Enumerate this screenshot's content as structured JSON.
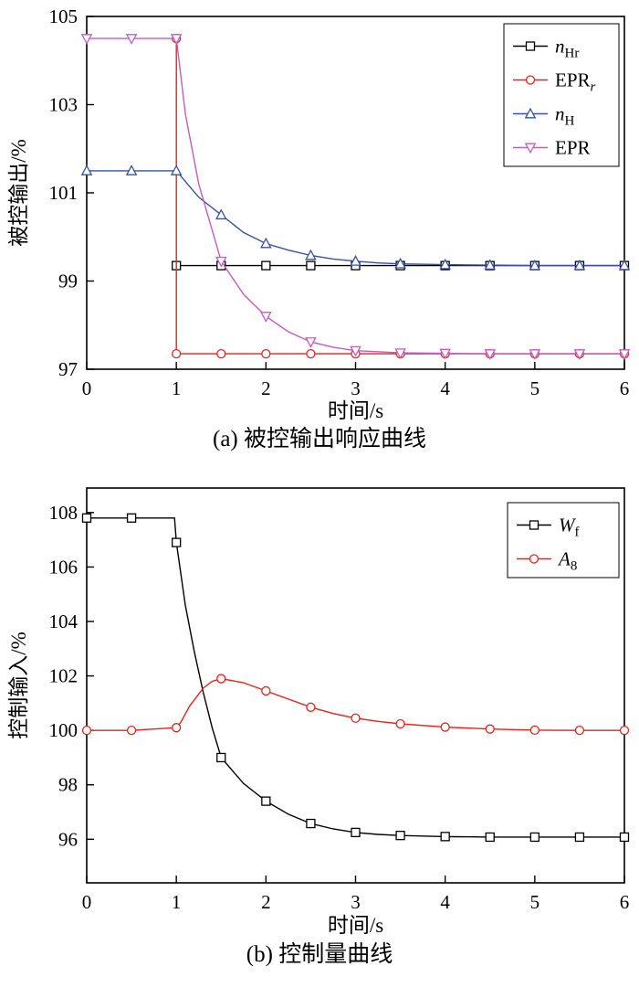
{
  "figure": {
    "caption_a": "(a) 被控输出响应曲线",
    "caption_b": "(b) 控制量曲线"
  },
  "chart_data": [
    {
      "id": "a",
      "type": "line",
      "xlabel": "时间/s",
      "ylabel": "被控输出/%",
      "xlim": [
        0,
        6
      ],
      "ylim": [
        97,
        105
      ],
      "xticks": [
        0,
        1,
        2,
        3,
        4,
        5,
        6
      ],
      "yticks": [
        97,
        99,
        101,
        103,
        105
      ],
      "grid": false,
      "legend_position": "top-right",
      "marker_interval": 0.5,
      "series": [
        {
          "name": "nHr",
          "label": {
            "main": "n",
            "italic": true,
            "sub": "Hr",
            "sub_italic": false
          },
          "color": "#000000",
          "marker": "square",
          "x": [
            1,
            1.5,
            2,
            2.5,
            3,
            3.5,
            4,
            4.5,
            5,
            5.5,
            6
          ],
          "y": [
            99.35,
            99.35,
            99.35,
            99.35,
            99.35,
            99.35,
            99.35,
            99.35,
            99.35,
            99.35,
            99.35
          ]
        },
        {
          "name": "EPRr",
          "label": {
            "main": "EPR",
            "italic": false,
            "sub": "r",
            "sub_italic": true
          },
          "color": "#e8211c",
          "marker": "circle",
          "x": [
            1,
            1,
            1.5,
            2,
            2.5,
            3,
            3.5,
            4,
            4.5,
            5,
            5.5,
            6
          ],
          "y": [
            104.5,
            97.35,
            97.35,
            97.35,
            97.35,
            97.35,
            97.35,
            97.35,
            97.35,
            97.35,
            97.35,
            97.35
          ]
        },
        {
          "name": "nH",
          "label": {
            "main": "n",
            "italic": true,
            "sub": "H",
            "sub_italic": false
          },
          "color": "#37519f",
          "marker": "triangle-up",
          "x": [
            0,
            0.5,
            1,
            1.25,
            1.5,
            1.75,
            2,
            2.25,
            2.5,
            2.75,
            3,
            3.25,
            3.5,
            4,
            4.5,
            5,
            5.5,
            6
          ],
          "y": [
            101.5,
            101.5,
            101.5,
            100.9,
            100.5,
            100.1,
            99.85,
            99.7,
            99.58,
            99.5,
            99.45,
            99.41,
            99.39,
            99.37,
            99.36,
            99.35,
            99.35,
            99.35
          ]
        },
        {
          "name": "EPR",
          "label": {
            "main": "EPR",
            "italic": false,
            "sub": "",
            "sub_italic": false
          },
          "color": "#c45cc0",
          "marker": "triangle-down",
          "x": [
            0,
            0.5,
            1,
            1.1,
            1.25,
            1.5,
            1.75,
            2,
            2.25,
            2.5,
            2.75,
            3,
            3.5,
            4,
            4.5,
            5,
            5.5,
            6
          ],
          "y": [
            104.5,
            104.5,
            104.5,
            102.8,
            101.2,
            99.45,
            98.7,
            98.2,
            97.85,
            97.62,
            97.5,
            97.42,
            97.37,
            97.36,
            97.35,
            97.35,
            97.35,
            97.35
          ]
        }
      ]
    },
    {
      "id": "b",
      "type": "line",
      "xlabel": "时间/s",
      "ylabel": "控制输入/%",
      "xlim": [
        0,
        6
      ],
      "ylim": [
        94.4,
        108.9
      ],
      "xticks": [
        0,
        1,
        2,
        3,
        4,
        5,
        6
      ],
      "yticks": [
        96,
        98,
        100,
        102,
        104,
        106,
        108
      ],
      "grid": false,
      "legend_position": "top-right",
      "marker_interval": 0.5,
      "series": [
        {
          "name": "Wf",
          "label": {
            "main": "W",
            "italic": true,
            "sub": "f",
            "sub_italic": false
          },
          "color": "#000000",
          "marker": "square",
          "x": [
            0,
            0.5,
            0.98,
            1,
            1.1,
            1.2,
            1.3,
            1.4,
            1.5,
            1.75,
            2,
            2.25,
            2.5,
            2.75,
            3,
            3.25,
            3.5,
            4,
            4.5,
            5,
            5.5,
            6
          ],
          "y": [
            107.8,
            107.8,
            107.8,
            106.9,
            104.6,
            102.9,
            101.4,
            100.1,
            99.0,
            98.05,
            97.4,
            96.92,
            96.58,
            96.38,
            96.25,
            96.18,
            96.14,
            96.1,
            96.08,
            96.08,
            96.08,
            96.08
          ]
        },
        {
          "name": "A8",
          "label": {
            "main": "A",
            "italic": true,
            "sub": "8",
            "sub_italic": false
          },
          "color": "#e8211c",
          "marker": "circle",
          "x": [
            0,
            0.5,
            1,
            1.05,
            1.15,
            1.3,
            1.4,
            1.5,
            1.75,
            2,
            2.25,
            2.5,
            2.75,
            3,
            3.25,
            3.5,
            4,
            4.5,
            5,
            5.5,
            6
          ],
          "y": [
            100,
            100,
            100.1,
            100.3,
            100.9,
            101.55,
            101.8,
            101.9,
            101.75,
            101.45,
            101.15,
            100.85,
            100.62,
            100.45,
            100.33,
            100.24,
            100.12,
            100.05,
            100.01,
            100,
            100
          ]
        }
      ]
    }
  ]
}
